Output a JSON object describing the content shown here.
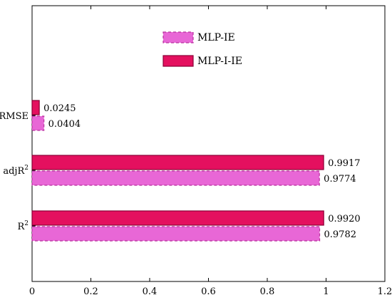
{
  "chart_data": {
    "type": "bar",
    "orientation": "horizontal",
    "title": "",
    "xlabel": "",
    "ylabel": "",
    "xlim": [
      0,
      1.2
    ],
    "x_ticks": [
      "0",
      "0.2",
      "0.4",
      "0.6",
      "0.8",
      "1",
      "1.2"
    ],
    "grid": false,
    "legend_position": "top-center",
    "categories": [
      "R",
      "adjR",
      "RMSE"
    ],
    "category_superscripts": [
      "2",
      "2",
      ""
    ],
    "series": [
      {
        "name": "MLP-IE",
        "color": "#e867d6",
        "border": "#b8309e",
        "dashed": true,
        "values": [
          0.9782,
          0.9774,
          0.0404
        ],
        "labels": [
          "0.9782",
          "0.9774",
          "0.0404"
        ]
      },
      {
        "name": "MLP-I-IE",
        "color": "#e4105f",
        "border": "#8a0036",
        "dashed": false,
        "values": [
          0.992,
          0.9917,
          0.0245
        ],
        "labels": [
          "0.9920",
          "0.9917",
          "0.0245"
        ]
      }
    ]
  }
}
